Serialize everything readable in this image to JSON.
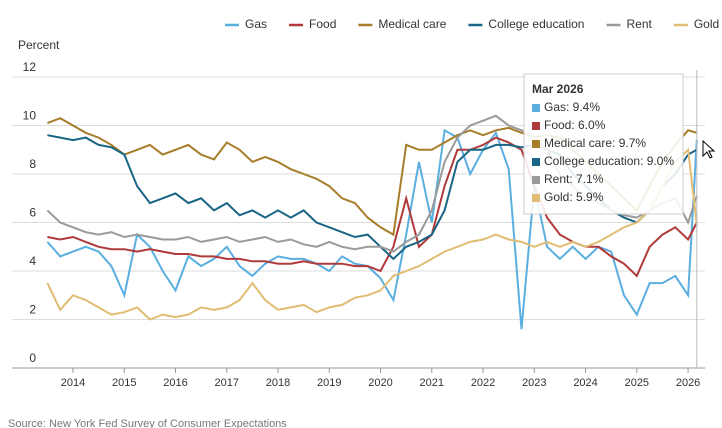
{
  "chart_data": {
    "type": "line",
    "y_label": "Percent",
    "source": "Source: New York Fed Survey of Consumer Expectations",
    "x": [
      2013.5,
      2013.75,
      2014,
      2014.25,
      2014.5,
      2014.75,
      2015,
      2015.25,
      2015.5,
      2015.75,
      2016,
      2016.25,
      2016.5,
      2016.75,
      2017,
      2017.25,
      2017.5,
      2017.75,
      2018,
      2018.25,
      2018.5,
      2018.75,
      2019,
      2019.25,
      2019.5,
      2019.75,
      2020,
      2020.25,
      2020.5,
      2020.75,
      2021,
      2021.25,
      2021.5,
      2021.75,
      2022,
      2022.25,
      2022.5,
      2022.75,
      2023,
      2023.25,
      2023.5,
      2023.75,
      2024,
      2024.25,
      2024.5,
      2024.75,
      2025,
      2025.25,
      2025.5,
      2025.75,
      2026,
      2026.17
    ],
    "xlim": [
      2012.81,
      2026.33
    ],
    "xticks": [
      2014,
      2015,
      2016,
      2017,
      2018,
      2019,
      2020,
      2021,
      2022,
      2023,
      2024,
      2025,
      2026
    ],
    "ylim": [
      0,
      12
    ],
    "yticks": [
      0,
      2,
      4,
      6,
      8,
      10,
      12
    ],
    "grid": true,
    "legend": "top-right",
    "series": [
      {
        "name": "Gas",
        "color": "#5aaee0",
        "values": [
          5.2,
          4.6,
          4.8,
          5.0,
          4.8,
          4.2,
          3.0,
          5.5,
          5.0,
          4.0,
          3.2,
          4.6,
          4.2,
          4.5,
          5.0,
          4.2,
          3.8,
          4.3,
          4.6,
          4.5,
          4.5,
          4.3,
          4.0,
          4.6,
          4.3,
          4.2,
          3.7,
          2.8,
          5.5,
          8.5,
          6.0,
          9.8,
          9.5,
          8.0,
          9.0,
          9.7,
          8.2,
          1.6,
          7.5,
          5.0,
          4.5,
          5.0,
          4.5,
          5.0,
          4.8,
          3.0,
          2.2,
          3.5,
          3.5,
          3.8,
          3.0,
          9.4
        ]
      },
      {
        "name": "Food",
        "color": "#b03a3a",
        "values": [
          5.4,
          5.3,
          5.4,
          5.2,
          5.0,
          4.9,
          4.9,
          4.8,
          4.9,
          4.8,
          4.7,
          4.7,
          4.6,
          4.6,
          4.5,
          4.5,
          4.4,
          4.4,
          4.3,
          4.3,
          4.4,
          4.3,
          4.3,
          4.3,
          4.2,
          4.2,
          4.0,
          5.0,
          7.0,
          5.0,
          5.5,
          7.5,
          9.0,
          9.0,
          9.2,
          9.5,
          9.3,
          9.0,
          7.5,
          6.2,
          5.5,
          5.2,
          5.0,
          5.0,
          4.6,
          4.3,
          3.8,
          5.0,
          5.5,
          5.8,
          5.3,
          6.0
        ]
      },
      {
        "name": "Medical care",
        "color": "#a77d2a",
        "values": [
          10.1,
          10.3,
          10.0,
          9.7,
          9.5,
          9.2,
          8.8,
          9.0,
          9.2,
          8.8,
          9.0,
          9.2,
          8.8,
          8.6,
          9.3,
          9.0,
          8.5,
          8.7,
          8.5,
          8.2,
          8.0,
          7.8,
          7.5,
          7.0,
          6.8,
          6.2,
          5.8,
          5.5,
          9.2,
          9.0,
          9.0,
          9.3,
          9.6,
          9.8,
          9.6,
          9.8,
          9.9,
          9.7,
          9.5,
          9.6,
          9.5,
          9.0,
          8.5,
          8.0,
          7.5,
          7.0,
          6.5,
          7.5,
          8.5,
          9.2,
          9.8,
          9.7
        ]
      },
      {
        "name": "College education",
        "color": "#1a6585",
        "values": [
          9.6,
          9.5,
          9.4,
          9.5,
          9.2,
          9.1,
          8.8,
          7.5,
          6.8,
          7.0,
          7.2,
          6.8,
          7.0,
          6.5,
          6.8,
          6.3,
          6.5,
          6.2,
          6.5,
          6.2,
          6.5,
          6.0,
          5.8,
          5.6,
          5.4,
          5.5,
          5.0,
          4.5,
          5.0,
          5.2,
          5.5,
          6.5,
          8.5,
          9.0,
          9.0,
          9.2,
          9.2,
          9.1,
          9.2,
          9.0,
          8.8,
          8.0,
          7.5,
          7.0,
          6.5,
          6.2,
          6.0,
          6.5,
          7.5,
          8.0,
          8.8,
          9.0
        ]
      },
      {
        "name": "Rent",
        "color": "#9a9a9a",
        "values": [
          6.5,
          6.0,
          5.8,
          5.6,
          5.5,
          5.6,
          5.4,
          5.5,
          5.4,
          5.3,
          5.3,
          5.4,
          5.2,
          5.3,
          5.4,
          5.2,
          5.3,
          5.4,
          5.2,
          5.3,
          5.1,
          5.0,
          5.2,
          5.0,
          4.9,
          5.0,
          5.0,
          4.8,
          5.2,
          5.5,
          6.5,
          8.5,
          9.5,
          10.0,
          10.2,
          10.4,
          10.0,
          9.8,
          9.5,
          9.0,
          8.0,
          7.5,
          7.0,
          6.8,
          6.5,
          6.3,
          6.2,
          6.5,
          6.8,
          7.0,
          6.0,
          7.1
        ]
      },
      {
        "name": "Gold",
        "color": "#e0bd72",
        "values": [
          3.5,
          2.4,
          3.0,
          2.8,
          2.5,
          2.2,
          2.3,
          2.5,
          2.0,
          2.2,
          2.1,
          2.2,
          2.5,
          2.4,
          2.5,
          2.8,
          3.5,
          2.8,
          2.4,
          2.5,
          2.6,
          2.3,
          2.5,
          2.6,
          2.9,
          3.0,
          3.2,
          3.8,
          4.0,
          4.2,
          4.5,
          4.8,
          5.0,
          5.2,
          5.3,
          5.5,
          5.3,
          5.2,
          5.0,
          5.2,
          5.0,
          5.2,
          5.0,
          5.2,
          5.5,
          5.8,
          6.0,
          6.5,
          7.5,
          8.5,
          9.0,
          5.9
        ]
      }
    ],
    "tooltip": {
      "title": "Mar 2026",
      "x": 2026.17,
      "items": [
        "Gas: 9.4%",
        "Food: 6.0%",
        "Medical care: 9.7%",
        "College education: 9.0%",
        "Rent: 7.1%",
        "Gold: 5.9%"
      ]
    }
  }
}
